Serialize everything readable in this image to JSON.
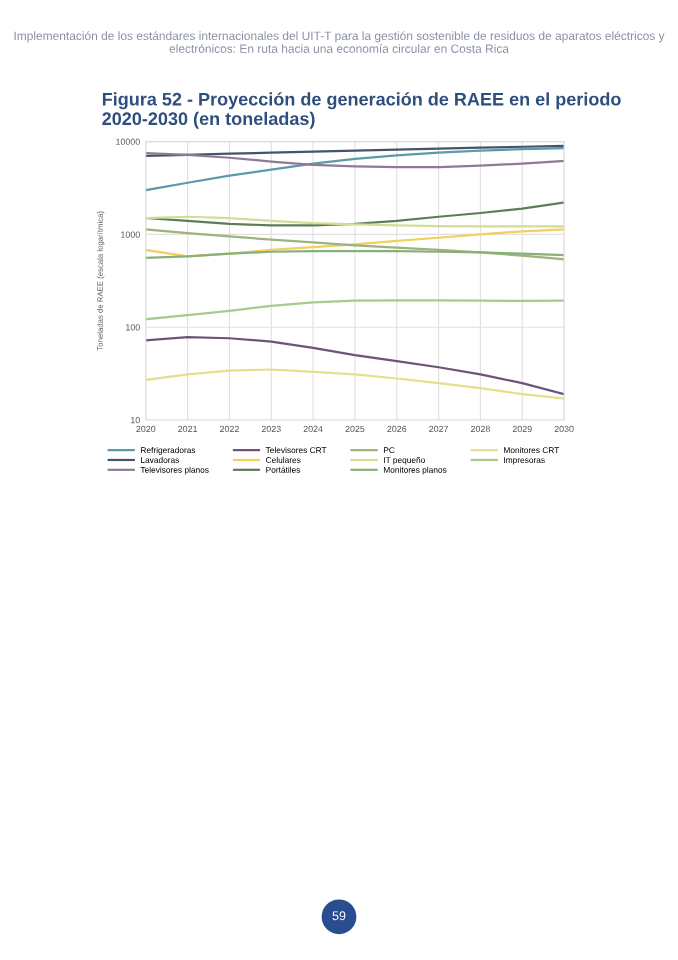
{
  "chart_data": {
    "type": "line",
    "title": "Figura 52 - Proyección de generación de RAEE en el periodo 2020-2030 (en toneladas)",
    "subtitle": "Implementación de los estándares internacionales del UIT-T para la gestión sostenible de residuos de aparatos eléctricos y electrónicos: En ruta hacia una economía circular en Costa Rica",
    "ylabel": "Toneladas de RAEE (escala logarítmica)",
    "annotations": [
      "59"
    ],
    "x": [
      2020,
      2021,
      2022,
      2023,
      2024,
      2025,
      2026,
      2027,
      2028,
      2029,
      2030
    ],
    "xlim": [
      2020,
      2030
    ],
    "xticks": [
      2020,
      2021,
      2022,
      2023,
      2024,
      2025,
      2026,
      2027,
      2028,
      2029,
      2030
    ],
    "log": true,
    "ylim": [
      10,
      10000
    ],
    "yticks": [
      10,
      100,
      1000,
      10000
    ],
    "grid": true,
    "legend": "bottom",
    "marker": "none",
    "line_style": "solid",
    "series": [
      {
        "name": "Refrigeradoras",
        "color": "#5b9aa9",
        "values": [
          3000,
          3600,
          4300,
          5000,
          5800,
          6500,
          7100,
          7600,
          8000,
          8300,
          8500
        ]
      },
      {
        "name": "Lavadoras",
        "color": "#44546a",
        "values": [
          7000,
          7200,
          7400,
          7600,
          7800,
          8000,
          8200,
          8400,
          8600,
          8800,
          9000
        ]
      },
      {
        "name": "Televisores planos",
        "color": "#8e7a95",
        "values": [
          7500,
          7200,
          6700,
          6100,
          5600,
          5400,
          5300,
          5300,
          5500,
          5800,
          6200
        ]
      },
      {
        "name": "Televisores CRT",
        "color": "#6b5478",
        "values": [
          72,
          78,
          76,
          70,
          60,
          50,
          43,
          37,
          31,
          25,
          19
        ]
      },
      {
        "name": "Celulares",
        "color": "#f2cf5f",
        "values": [
          680,
          580,
          620,
          680,
          730,
          780,
          850,
          920,
          1000,
          1080,
          1130
        ]
      },
      {
        "name": "Portátiles",
        "color": "#5e7d57",
        "values": [
          1500,
          1400,
          1300,
          1250,
          1250,
          1300,
          1400,
          1550,
          1700,
          1900,
          2200
        ]
      },
      {
        "name": "PC",
        "color": "#9cb47a",
        "values": [
          1130,
          1030,
          950,
          880,
          820,
          760,
          720,
          680,
          640,
          590,
          540
        ]
      },
      {
        "name": "IT pequeño",
        "color": "#d4dc96",
        "values": [
          1500,
          1550,
          1500,
          1400,
          1320,
          1280,
          1250,
          1230,
          1220,
          1220,
          1220
        ]
      },
      {
        "name": "Monitores planos",
        "color": "#87b07a",
        "values": [
          560,
          580,
          620,
          650,
          660,
          660,
          660,
          650,
          640,
          620,
          600
        ]
      },
      {
        "name": "Monitores CRT",
        "color": "#e3e08c",
        "values": [
          27,
          31,
          34,
          35,
          33,
          31,
          28,
          25,
          22,
          19,
          17
        ]
      },
      {
        "name": "Impresoras",
        "color": "#a9c98e",
        "values": [
          122,
          135,
          150,
          170,
          185,
          193,
          195,
          195,
          193,
          192,
          193
        ]
      }
    ]
  }
}
